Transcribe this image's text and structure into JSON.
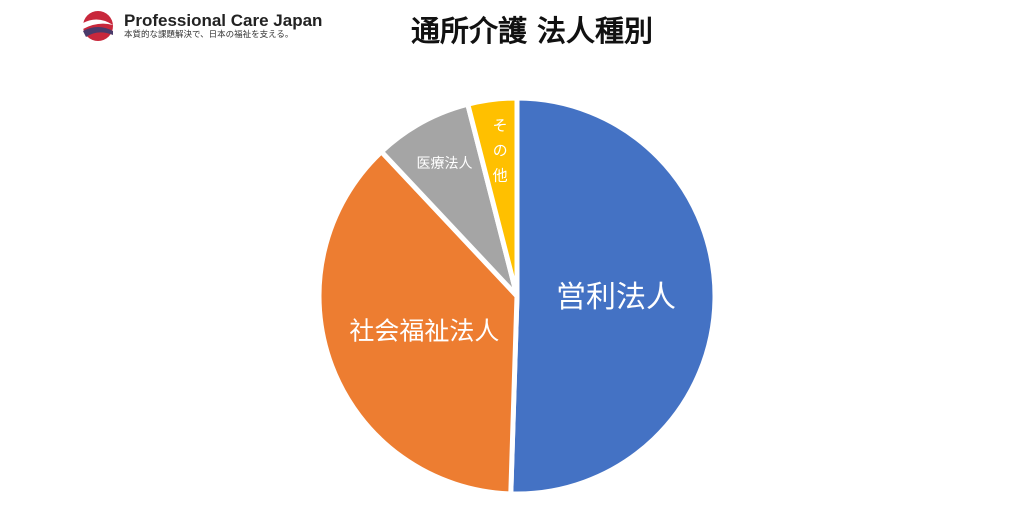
{
  "logo": {
    "name": "Professional Care Japan",
    "tagline": "本質的な課題解決で、日本の福祉を支える。"
  },
  "chart_data": {
    "type": "pie",
    "title": "通所介護 法人種別",
    "start": "top",
    "direction": "clockwise",
    "slices": [
      {
        "label": "営利法人",
        "value": 50.5,
        "color": "#4472C4"
      },
      {
        "label": "社会福祉法人",
        "value": 37.5,
        "color": "#ED7D31"
      },
      {
        "label": "医療法人",
        "value": 8.0,
        "color": "#A5A5A5"
      },
      {
        "label": "その他",
        "value": 4.0,
        "color": "#FFC000"
      }
    ]
  }
}
